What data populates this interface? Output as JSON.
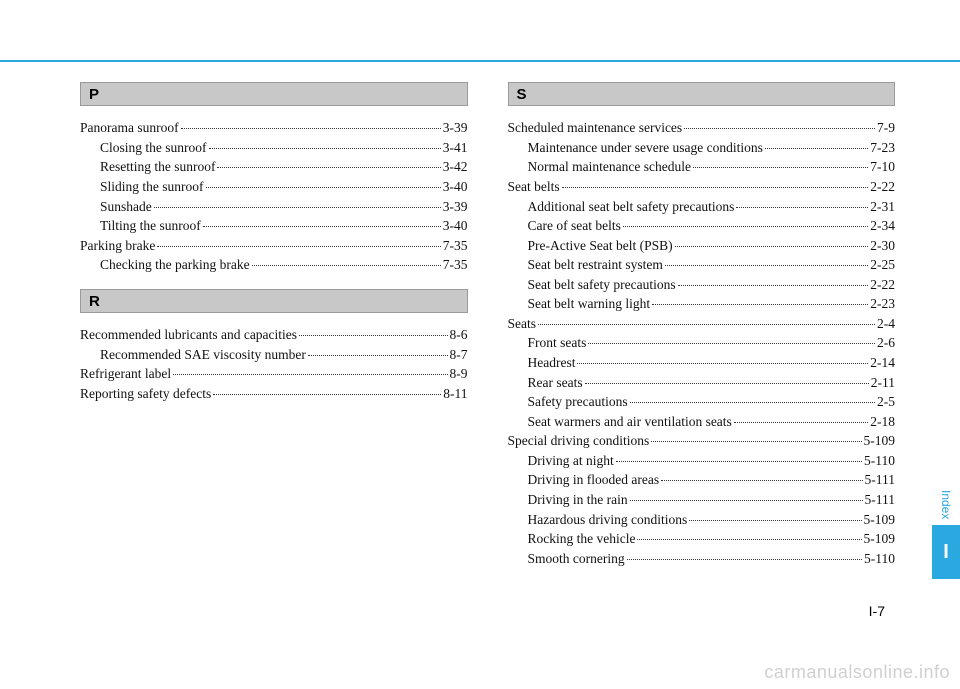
{
  "colors": {
    "accent": "#2aa8e0",
    "header_bg": "#c8c8c8",
    "header_border": "#9a9a9a",
    "text": "#111111",
    "watermark": "#d0d0d0",
    "background": "#ffffff"
  },
  "page_number": "I-7",
  "side_tab": {
    "label": "Index",
    "letter": "I"
  },
  "watermark": "carmanualsonline.info",
  "left": {
    "groups": [
      {
        "header": "P",
        "entries": [
          {
            "label": "Panorama sunroof",
            "page": "3-39",
            "sub": false
          },
          {
            "label": "Closing the sunroof",
            "page": "3-41",
            "sub": true
          },
          {
            "label": "Resetting the sunroof",
            "page": "3-42",
            "sub": true
          },
          {
            "label": "Sliding the sunroof",
            "page": "3-40",
            "sub": true
          },
          {
            "label": "Sunshade",
            "page": "3-39",
            "sub": true
          },
          {
            "label": "Tilting the sunroof",
            "page": "3-40",
            "sub": true
          },
          {
            "label": "Parking brake",
            "page": "7-35",
            "sub": false
          },
          {
            "label": "Checking the parking brake",
            "page": "7-35",
            "sub": true
          }
        ]
      },
      {
        "header": "R",
        "entries": [
          {
            "label": "Recommended lubricants and capacities",
            "page": "8-6",
            "sub": false
          },
          {
            "label": "Recommended SAE viscosity number",
            "page": "8-7",
            "sub": true
          },
          {
            "label": "Refrigerant label",
            "page": "8-9",
            "sub": false
          },
          {
            "label": "Reporting safety defects",
            "page": "8-11",
            "sub": false
          }
        ]
      }
    ]
  },
  "right": {
    "groups": [
      {
        "header": "S",
        "entries": [
          {
            "label": "Scheduled maintenance services",
            "page": "7-9",
            "sub": false
          },
          {
            "label": "Maintenance under severe usage conditions",
            "page": "7-23",
            "sub": true
          },
          {
            "label": "Normal maintenance schedule",
            "page": "7-10",
            "sub": true
          },
          {
            "label": "Seat belts",
            "page": "2-22",
            "sub": false
          },
          {
            "label": "Additional seat belt safety precautions",
            "page": "2-31",
            "sub": true
          },
          {
            "label": "Care of seat belts",
            "page": "2-34",
            "sub": true
          },
          {
            "label": "Pre-Active Seat belt (PSB)",
            "page": "2-30",
            "sub": true
          },
          {
            "label": "Seat belt restraint system",
            "page": "2-25",
            "sub": true
          },
          {
            "label": "Seat belt safety precautions",
            "page": "2-22",
            "sub": true
          },
          {
            "label": "Seat belt warning light",
            "page": "2-23",
            "sub": true
          },
          {
            "label": "Seats",
            "page": "2-4",
            "sub": false
          },
          {
            "label": "Front seats",
            "page": "2-6",
            "sub": true
          },
          {
            "label": "Headrest",
            "page": "2-14",
            "sub": true
          },
          {
            "label": "Rear seats",
            "page": "2-11",
            "sub": true
          },
          {
            "label": "Safety precautions",
            "page": "2-5",
            "sub": true
          },
          {
            "label": "Seat warmers and air ventilation seats",
            "page": "2-18",
            "sub": true
          },
          {
            "label": "Special driving conditions",
            "page": "5-109",
            "sub": false
          },
          {
            "label": "Driving at night",
            "page": "5-110",
            "sub": true
          },
          {
            "label": "Driving in flooded areas",
            "page": "5-111",
            "sub": true
          },
          {
            "label": "Driving in the rain",
            "page": "5-111",
            "sub": true
          },
          {
            "label": "Hazardous driving conditions",
            "page": "5-109",
            "sub": true
          },
          {
            "label": "Rocking the vehicle",
            "page": "5-109",
            "sub": true
          },
          {
            "label": "Smooth cornering",
            "page": "5-110",
            "sub": true
          }
        ]
      }
    ]
  }
}
